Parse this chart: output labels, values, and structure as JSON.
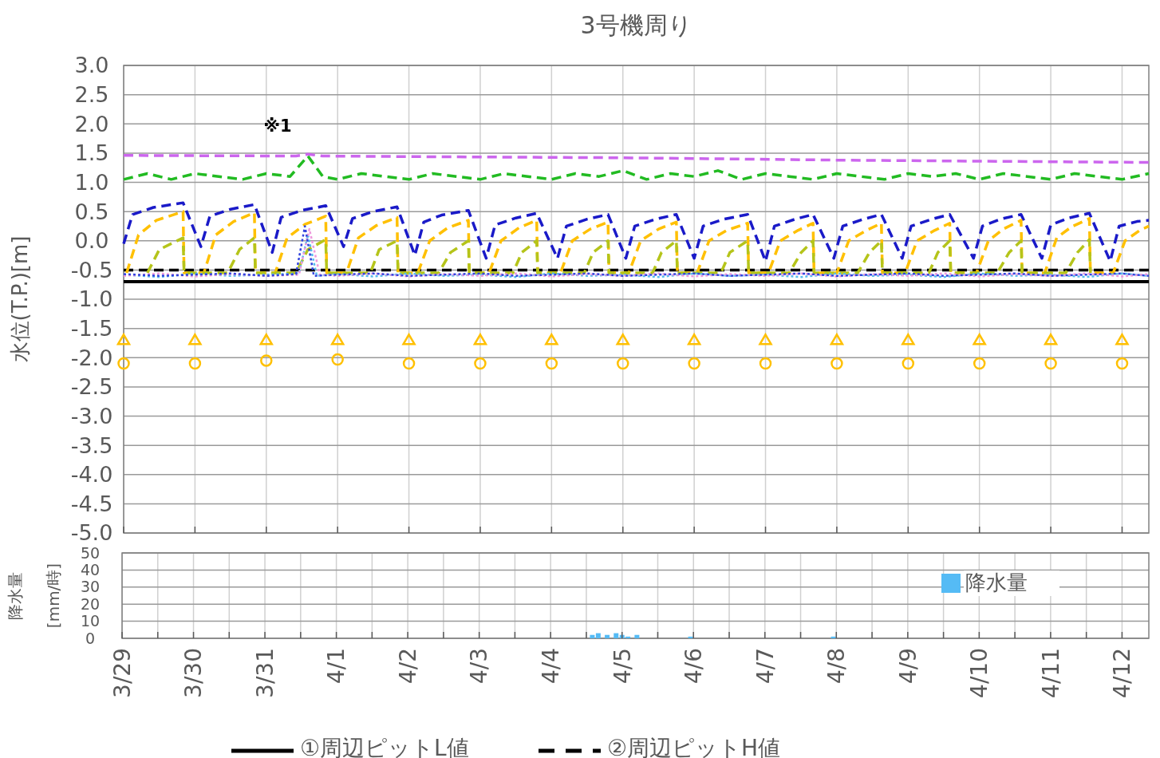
{
  "chart_data": [
    {
      "type": "line",
      "title": "3号機周り",
      "ylabel": "水位(T.P.)[m]",
      "xlim": [
        "--03-29",
        "--04-12T09:00"
      ],
      "xticks": [
        {
          "value": "--03-29",
          "label": null
        },
        {
          "value": "--03-30",
          "label": null
        },
        {
          "value": "--03-31",
          "label": null
        },
        {
          "value": "--04-01",
          "label": null
        },
        {
          "value": "--04-02",
          "label": null
        },
        {
          "value": "--04-03",
          "label": null
        },
        {
          "value": "--04-04",
          "label": null
        },
        {
          "value": "--04-05",
          "label": null
        },
        {
          "value": "--04-06",
          "label": null
        },
        {
          "value": "--04-07",
          "label": null
        },
        {
          "value": "--04-08",
          "label": null
        },
        {
          "value": "--04-09",
          "label": null
        },
        {
          "value": "--04-10",
          "label": null
        },
        {
          "value": "--04-11",
          "label": null
        },
        {
          "value": "--04-12",
          "label": null
        }
      ],
      "ylim": [
        -5,
        3
      ],
      "yticks": [
        {
          "value": -5,
          "label": "-5.0"
        },
        {
          "value": -4.5,
          "label": "-4.5"
        },
        {
          "value": -4,
          "label": "-4.0"
        },
        {
          "value": -3.5,
          "label": "-3.5"
        },
        {
          "value": -3,
          "label": "-3.0"
        },
        {
          "value": -2.5,
          "label": "-2.5"
        },
        {
          "value": -2,
          "label": "-2.0"
        },
        {
          "value": -1.5,
          "label": "-1.5"
        },
        {
          "value": -1,
          "label": "-1.0"
        },
        {
          "value": -0.5,
          "label": "-0.5"
        },
        {
          "value": 0,
          "label": "0.0"
        },
        {
          "value": 0.5,
          "label": "0.5"
        },
        {
          "value": 1,
          "label": "1.0"
        },
        {
          "value": 1.5,
          "label": "1.5"
        },
        {
          "value": 2,
          "label": "2.0"
        },
        {
          "value": 2.5,
          "label": "2.5"
        },
        {
          "value": 3,
          "label": "3.0"
        }
      ],
      "tick_labels": "y",
      "grid": true,
      "legend": "bottom",
      "annotations": [
        "※1"
      ],
      "series": [
        {
          "name": "①周辺ピットL値",
          "color": "#000000",
          "line_style": "solid",
          "x": [
            "--03-29",
            "--04-12T09:00"
          ],
          "values": [
            -0.7,
            -0.7
          ]
        },
        {
          "name": "②周辺ピットH値",
          "color": "#000000",
          "line_style": "dashed",
          "x": [
            "--03-29",
            "--04-12T09:00"
          ],
          "values": [
            -0.5,
            -0.5
          ]
        },
        {
          "color": "#cc66ee",
          "line_style": "dashed",
          "x": [
            "--03-29",
            "--03-31T10:00",
            "--03-31T14:00",
            "--03-31T19:00",
            "--04-02",
            "--04-05",
            "--04-08",
            "--04-12T09:00"
          ],
          "values": [
            1.46,
            1.45,
            1.48,
            1.45,
            1.44,
            1.42,
            1.38,
            1.34
          ]
        },
        {
          "color": "#22bb22",
          "line_style": "dashed",
          "x": [
            "--03-29T00:00",
            "--03-29T08:00",
            "--03-29T16:00",
            "--03-30T00:00",
            "--03-30T08:00",
            "--03-30T16:00",
            "--03-31T00:00",
            "--03-31T08:00",
            "--03-31T14:00",
            "--03-31T19:00",
            "--04-01T00:00",
            "--04-01T08:00",
            "--04-01T16:00",
            "--04-02T00:00",
            "--04-02T08:00",
            "--04-02T16:00",
            "--04-03T00:00",
            "--04-03T08:00",
            "--04-03T16:00",
            "--04-04T00:00",
            "--04-04T08:00",
            "--04-04T16:00",
            "--04-05T00:00",
            "--04-05T08:00",
            "--04-05T16:00",
            "--04-06T00:00",
            "--04-06T08:00",
            "--04-06T16:00",
            "--04-07T00:00",
            "--04-07T08:00",
            "--04-07T16:00",
            "--04-08T00:00",
            "--04-08T08:00",
            "--04-08T16:00",
            "--04-09T00:00",
            "--04-09T08:00",
            "--04-09T16:00",
            "--04-10T00:00",
            "--04-10T08:00",
            "--04-10T16:00",
            "--04-11T00:00",
            "--04-11T08:00",
            "--04-11T16:00",
            "--04-12T00:00",
            "--04-12T09:00"
          ],
          "values": [
            1.05,
            1.15,
            1.05,
            1.15,
            1.1,
            1.05,
            1.15,
            1.1,
            1.45,
            1.1,
            1.05,
            1.15,
            1.1,
            1.05,
            1.15,
            1.1,
            1.05,
            1.15,
            1.1,
            1.05,
            1.15,
            1.1,
            1.2,
            1.05,
            1.15,
            1.1,
            1.2,
            1.05,
            1.15,
            1.1,
            1.05,
            1.15,
            1.1,
            1.05,
            1.15,
            1.1,
            1.15,
            1.05,
            1.15,
            1.1,
            1.05,
            1.15,
            1.1,
            1.05,
            1.15
          ]
        },
        {
          "color": "#1a1ac8",
          "line_style": "dashed",
          "x": [
            "--03-29T00:00",
            "--03-29T03:00",
            "--03-29T10:00",
            "--03-29T20:00",
            "--03-30T02:00",
            "--03-30T05:00",
            "--03-30T12:00",
            "--03-30T20:00",
            "--03-31T02:00",
            "--03-31T05:00",
            "--03-31T12:00",
            "--03-31T20:00",
            "--04-01T02:00",
            "--04-01T05:00",
            "--04-01T12:00",
            "--04-01T20:00",
            "--04-02T02:00",
            "--04-02T05:00",
            "--04-02T11:00",
            "--04-02T20:00",
            "--04-03T02:00",
            "--04-03T05:00",
            "--04-03T12:00",
            "--04-03T19:00",
            "--04-04T02:00",
            "--04-04T05:00",
            "--04-04T12:00",
            "--04-04T19:00",
            "--04-05T01:00",
            "--04-05T04:00",
            "--04-05T11:00",
            "--04-05T18:00",
            "--04-06T00:00",
            "--04-06T03:00",
            "--04-06T10:00",
            "--04-06T18:00",
            "--04-07T00:00",
            "--04-07T03:00",
            "--04-07T10:00",
            "--04-07T16:00",
            "--04-07T23:00",
            "--04-08T02:00",
            "--04-08T09:00",
            "--04-08T15:00",
            "--04-08T22:00",
            "--04-09T01:00",
            "--04-09T08:00",
            "--04-09T14:00",
            "--04-09T22:00",
            "--04-10T01:00",
            "--04-10T07:00",
            "--04-10T14:00",
            "--04-10T21:00",
            "--04-11T00:00",
            "--04-11T06:00",
            "--04-11T13:00",
            "--04-11T20:00",
            "--04-11T23:00",
            "--04-12T05:00",
            "--04-12T09:00"
          ],
          "values": [
            -0.05,
            0.45,
            0.57,
            0.65,
            -0.1,
            0.42,
            0.54,
            0.62,
            -0.2,
            0.4,
            0.52,
            0.6,
            -0.1,
            0.38,
            0.5,
            0.58,
            -0.25,
            0.32,
            0.44,
            0.52,
            -0.3,
            0.27,
            0.39,
            0.47,
            -0.3,
            0.25,
            0.37,
            0.45,
            -0.3,
            0.25,
            0.37,
            0.45,
            -0.3,
            0.25,
            0.37,
            0.45,
            -0.35,
            0.25,
            0.37,
            0.45,
            -0.3,
            0.25,
            0.37,
            0.45,
            -0.3,
            0.25,
            0.37,
            0.45,
            -0.3,
            0.25,
            0.37,
            0.45,
            -0.3,
            0.27,
            0.39,
            0.47,
            -0.35,
            0.25,
            0.33,
            0.35
          ]
        },
        {
          "color": "#ffc000",
          "line_style": "dashed",
          "x": [
            "--03-29T01:00",
            "--03-29T05:00",
            "--03-29T11:00",
            "--03-29T20:00",
            "--03-29T20:20",
            "--03-30T03:00",
            "--03-30T07:00",
            "--03-30T13:00",
            "--03-30T20:00",
            "--03-30T20:20",
            "--03-31T03:00",
            "--03-31T07:00",
            "--03-31T13:00",
            "--03-31T20:00",
            "--03-31T20:20",
            "--04-01T03:00",
            "--04-01T07:00",
            "--04-01T13:00",
            "--04-01T20:00",
            "--04-01T20:20",
            "--04-02T03:00",
            "--04-02T07:00",
            "--04-02T13:00",
            "--04-02T20:00",
            "--04-02T20:20",
            "--04-03T03:00",
            "--04-03T07:00",
            "--04-03T13:00",
            "--04-03T19:00",
            "--04-03T19:20",
            "--04-04T03:00",
            "--04-04T07:00",
            "--04-04T13:00",
            "--04-04T19:00",
            "--04-04T19:20",
            "--04-05T02:00",
            "--04-05T06:00",
            "--04-05T12:00",
            "--04-05T18:00",
            "--04-05T18:20",
            "--04-06T01:00",
            "--04-06T05:00",
            "--04-06T11:00",
            "--04-06T18:00",
            "--04-06T18:20",
            "--04-07T01:00",
            "--04-07T05:00",
            "--04-07T11:00",
            "--04-07T16:00",
            "--04-07T16:20",
            "--04-08T00:00",
            "--04-08T04:00",
            "--04-08T10:00",
            "--04-08T15:00",
            "--04-08T15:20",
            "--04-08T23:00",
            "--04-09T03:00",
            "--04-09T09:00",
            "--04-09T14:00",
            "--04-09T14:20",
            "--04-09T23:00",
            "--04-10T03:00",
            "--04-10T08:00",
            "--04-10T14:00",
            "--04-10T14:20",
            "--04-10T22:00",
            "--04-11T02:00",
            "--04-11T07:00",
            "--04-11T13:00",
            "--04-11T13:20",
            "--04-11T21:00",
            "--04-12T01:00",
            "--04-12T06:00",
            "--04-12T09:00"
          ],
          "values": [
            -0.55,
            0.1,
            0.35,
            0.5,
            -0.55,
            -0.55,
            0.1,
            0.33,
            0.48,
            -0.55,
            -0.55,
            0.05,
            0.28,
            0.42,
            -0.55,
            -0.55,
            0.05,
            0.26,
            0.4,
            -0.55,
            -0.55,
            0,
            0.22,
            0.35,
            -0.55,
            -0.55,
            0,
            0.22,
            0.35,
            -0.55,
            -0.55,
            0,
            0.2,
            0.32,
            -0.55,
            -0.55,
            0,
            0.2,
            0.32,
            -0.55,
            -0.55,
            0,
            0.18,
            0.3,
            -0.55,
            -0.55,
            0,
            0.18,
            0.3,
            -0.55,
            -0.55,
            0,
            0.18,
            0.3,
            -0.55,
            -0.55,
            0,
            0.18,
            0.3,
            -0.55,
            -0.55,
            0,
            0.2,
            0.35,
            -0.55,
            -0.55,
            0.05,
            0.24,
            0.38,
            -0.55,
            -0.55,
            0,
            0.18,
            0.25
          ]
        },
        {
          "color": "#b5c41a",
          "line_style": "dashed",
          "x": [
            "--03-29T08:00",
            "--03-29T12:00",
            "--03-29T20:00",
            "--03-29T20:20",
            "--03-30T11:00",
            "--03-30T15:00",
            "--03-30T20:00",
            "--03-30T20:20",
            "--03-31T10:00",
            "--03-31T14:00",
            "--03-31T20:00",
            "--03-31T20:20",
            "--04-01T11:00",
            "--04-01T14:00",
            "--04-01T20:00",
            "--04-01T20:20",
            "--04-02T10:00",
            "--04-02T14:00",
            "--04-02T20:00",
            "--04-02T20:20",
            "--04-03T11:00",
            "--04-03T14:00",
            "--04-03T19:00",
            "--04-03T19:20",
            "--04-04T11:00",
            "--04-04T14:00",
            "--04-04T19:00",
            "--04-04T19:20",
            "--04-05T10:00",
            "--04-05T13:00",
            "--04-05T18:00",
            "--04-05T18:20",
            "--04-06T09:00",
            "--04-06T12:00",
            "--04-06T18:00",
            "--04-06T18:20",
            "--04-07T08:00",
            "--04-07T12:00",
            "--04-07T16:00",
            "--04-07T16:20",
            "--04-08T07:00",
            "--04-08T11:00",
            "--04-08T15:00",
            "--04-08T15:20",
            "--04-09T07:00",
            "--04-09T10:00",
            "--04-09T14:00",
            "--04-09T14:20",
            "--04-10T06:00",
            "--04-10T10:00",
            "--04-10T14:00",
            "--04-10T14:20",
            "--04-11T05:00",
            "--04-11T09:00",
            "--04-11T13:00",
            "--04-11T13:20"
          ],
          "values": [
            -0.55,
            -0.15,
            0.05,
            -0.55,
            -0.55,
            -0.15,
            0.05,
            -0.55,
            -0.55,
            -0.15,
            0.02,
            -0.55,
            -0.55,
            -0.15,
            0,
            -0.55,
            -0.55,
            -0.2,
            0,
            -0.55,
            -0.55,
            -0.2,
            0,
            -0.55,
            -0.55,
            -0.2,
            0,
            -0.55,
            -0.55,
            -0.2,
            0,
            -0.55,
            -0.55,
            -0.2,
            0,
            -0.55,
            -0.55,
            -0.2,
            0,
            -0.55,
            -0.55,
            -0.2,
            0,
            -0.55,
            -0.55,
            -0.2,
            0,
            -0.55,
            -0.55,
            -0.2,
            0,
            -0.55,
            -0.55,
            -0.2,
            0.02,
            -0.55
          ]
        },
        {
          "color": "#55bbee",
          "line_style": "dotted",
          "x": [
            "--03-29T00:00",
            "--03-29T12:00",
            "--03-30T00:00",
            "--03-30T12:00",
            "--03-31T00:00",
            "--03-31T11:00",
            "--03-31T14:00",
            "--03-31T17:00",
            "--04-01T00:00",
            "--04-01T12:00",
            "--04-02T00:00",
            "--04-02T12:00",
            "--04-03T00:00",
            "--04-03T12:00",
            "--04-04T00:00",
            "--04-04T12:00",
            "--04-05T00:00",
            "--04-05T12:00",
            "--04-06T00:00",
            "--04-06T12:00",
            "--04-07T00:00",
            "--04-07T12:00",
            "--04-08T00:00",
            "--04-08T12:00",
            "--04-09T00:00",
            "--04-09T12:00",
            "--04-10T00:00",
            "--04-10T12:00",
            "--04-11T00:00",
            "--04-11T12:00",
            "--04-12T00:00",
            "--04-12T09:00"
          ],
          "values": [
            -0.58,
            -0.62,
            -0.56,
            -0.6,
            -0.58,
            -0.56,
            0.1,
            -0.6,
            -0.57,
            -0.61,
            -0.56,
            -0.6,
            -0.58,
            -0.62,
            -0.56,
            -0.6,
            -0.58,
            -0.62,
            -0.56,
            -0.6,
            -0.58,
            -0.62,
            -0.56,
            -0.6,
            -0.58,
            -0.62,
            -0.56,
            -0.6,
            -0.58,
            -0.62,
            -0.56,
            -0.6
          ]
        },
        {
          "color": "#ee99dd",
          "line_style": "dotted",
          "x": [
            "--03-29T00:00",
            "--03-29T12:00",
            "--03-30T00:00",
            "--03-30T12:00",
            "--03-31T00:00",
            "--03-31T11:00",
            "--03-31T14:30",
            "--03-31T18:00",
            "--04-01T00:00",
            "--04-01T12:00",
            "--04-02T00:00",
            "--04-02T12:00",
            "--04-03T00:00",
            "--04-03T12:00",
            "--04-04T00:00",
            "--04-04T12:00",
            "--04-05T00:00",
            "--04-05T12:00",
            "--04-06T00:00",
            "--04-06T12:00",
            "--04-07T00:00",
            "--04-07T12:00",
            "--04-08T00:00",
            "--04-08T12:00",
            "--04-09T00:00",
            "--04-09T12:00",
            "--04-10T00:00",
            "--04-10T12:00",
            "--04-11T00:00",
            "--04-11T12:00",
            "--04-12T00:00",
            "--04-12T09:00"
          ],
          "values": [
            -0.6,
            -0.56,
            -0.61,
            -0.57,
            -0.6,
            -0.58,
            0.2,
            -0.58,
            -0.6,
            -0.56,
            -0.61,
            -0.57,
            -0.6,
            -0.56,
            -0.61,
            -0.57,
            -0.6,
            -0.56,
            -0.61,
            -0.57,
            -0.6,
            -0.56,
            -0.61,
            -0.57,
            -0.6,
            -0.56,
            -0.61,
            -0.57,
            -0.6,
            -0.56,
            -0.61,
            -0.57
          ]
        },
        {
          "color": "#3344dd",
          "line_style": "dotted",
          "x": [
            "--03-29T00:00",
            "--03-29T12:00",
            "--03-30T00:00",
            "--03-30T12:00",
            "--03-31T00:00",
            "--03-31T10:00",
            "--03-31T13:00",
            "--03-31T16:00",
            "--04-01T00:00",
            "--04-01T12:00",
            "--04-02T00:00",
            "--04-02T12:00",
            "--04-03T00:00",
            "--04-03T12:00",
            "--04-04T00:00",
            "--04-04T12:00",
            "--04-05T00:00",
            "--04-05T12:00",
            "--04-06T00:00",
            "--04-06T12:00",
            "--04-07T00:00",
            "--04-07T12:00",
            "--04-08T00:00",
            "--04-08T12:00",
            "--04-09T00:00",
            "--04-09T12:00",
            "--04-10T00:00",
            "--04-10T12:00",
            "--04-11T00:00",
            "--04-11T12:00",
            "--04-12T00:00",
            "--04-12T09:00"
          ],
          "values": [
            -0.57,
            -0.6,
            -0.58,
            -0.56,
            -0.6,
            -0.57,
            0.25,
            -0.6,
            -0.58,
            -0.56,
            -0.6,
            -0.58,
            -0.56,
            -0.6,
            -0.58,
            -0.56,
            -0.6,
            -0.58,
            -0.56,
            -0.6,
            -0.58,
            -0.56,
            -0.6,
            -0.58,
            -0.56,
            -0.6,
            -0.58,
            -0.56,
            -0.6,
            -0.58,
            -0.56,
            -0.6
          ]
        },
        {
          "type": "scatter",
          "marker": "triangle",
          "color": "#ffc000",
          "x": [
            "--03-29",
            "--03-30",
            "--03-31",
            "--04-01",
            "--04-02",
            "--04-03",
            "--04-04",
            "--04-05",
            "--04-06",
            "--04-07",
            "--04-08",
            "--04-09",
            "--04-10",
            "--04-11",
            "--04-12"
          ],
          "values": [
            -1.7,
            -1.7,
            -1.7,
            -1.7,
            -1.7,
            -1.7,
            -1.7,
            -1.7,
            -1.7,
            -1.7,
            -1.7,
            -1.7,
            -1.7,
            -1.7,
            -1.7
          ]
        },
        {
          "type": "scatter",
          "marker": "circle",
          "color": "#ffc000",
          "x": [
            "--03-29",
            "--03-30",
            "--03-31",
            "--04-01",
            "--04-02",
            "--04-03",
            "--04-04",
            "--04-05",
            "--04-06",
            "--04-07",
            "--04-08",
            "--04-09",
            "--04-10",
            "--04-11",
            "--04-12"
          ],
          "values": [
            -2.1,
            -2.1,
            -2.05,
            -2.03,
            -2.1,
            -2.1,
            -2.1,
            -2.1,
            -2.1,
            -2.1,
            -2.1,
            -2.1,
            -2.1,
            -2.1,
            -2.1
          ]
        }
      ]
    },
    {
      "type": "bar",
      "ylabel": "降水量 [mm/時]",
      "xlim": [
        "--03-29",
        "--04-12T09:00"
      ],
      "xticks": [
        {
          "value": "--03-29",
          "label": "3/29"
        },
        {
          "value": "--03-29T12:00",
          "label": null
        },
        {
          "value": "--03-30",
          "label": "3/30"
        },
        {
          "value": "--03-30T12:00",
          "label": null
        },
        {
          "value": "--03-31",
          "label": "3/31"
        },
        {
          "value": "--03-31T12:00",
          "label": null
        },
        {
          "value": "--04-01",
          "label": "4/1"
        },
        {
          "value": "--04-01T12:00",
          "label": null
        },
        {
          "value": "--04-02",
          "label": "4/2"
        },
        {
          "value": "--04-02T12:00",
          "label": null
        },
        {
          "value": "--04-03",
          "label": "4/3"
        },
        {
          "value": "--04-03T12:00",
          "label": null
        },
        {
          "value": "--04-04",
          "label": "4/4"
        },
        {
          "value": "--04-04T12:00",
          "label": null
        },
        {
          "value": "--04-05",
          "label": "4/5"
        },
        {
          "value": "--04-05T12:00",
          "label": null
        },
        {
          "value": "--04-06",
          "label": "4/6"
        },
        {
          "value": "--04-06T12:00",
          "label": null
        },
        {
          "value": "--04-07",
          "label": "4/7"
        },
        {
          "value": "--04-07T12:00",
          "label": null
        },
        {
          "value": "--04-08",
          "label": "4/8"
        },
        {
          "value": "--04-08T12:00",
          "label": null
        },
        {
          "value": "--04-09",
          "label": "4/9"
        },
        {
          "value": "--04-09T12:00",
          "label": null
        },
        {
          "value": "--04-10",
          "label": "4/10"
        },
        {
          "value": "--04-10T12:00",
          "label": null
        },
        {
          "value": "--04-11",
          "label": "4/11"
        },
        {
          "value": "--04-11T12:00",
          "label": null
        },
        {
          "value": "--04-12",
          "label": "4/12"
        }
      ],
      "ylim": [
        0,
        50
      ],
      "yticks": [
        0,
        10,
        20,
        30,
        40,
        50
      ],
      "grid": true,
      "legend": "top right",
      "series": [
        {
          "name": "降水量",
          "color": "#55bbf5",
          "x": [
            "--04-04T14:00",
            "--04-04T16:00",
            "--04-04T19:00",
            "--04-04T22:00",
            "--04-05T00:00",
            "--04-05T02:00",
            "--04-05T05:00",
            "--04-05T23:00",
            "--04-07T23:00"
          ],
          "values": [
            2,
            3,
            2,
            3,
            2,
            1,
            2,
            1,
            1
          ]
        }
      ]
    }
  ]
}
